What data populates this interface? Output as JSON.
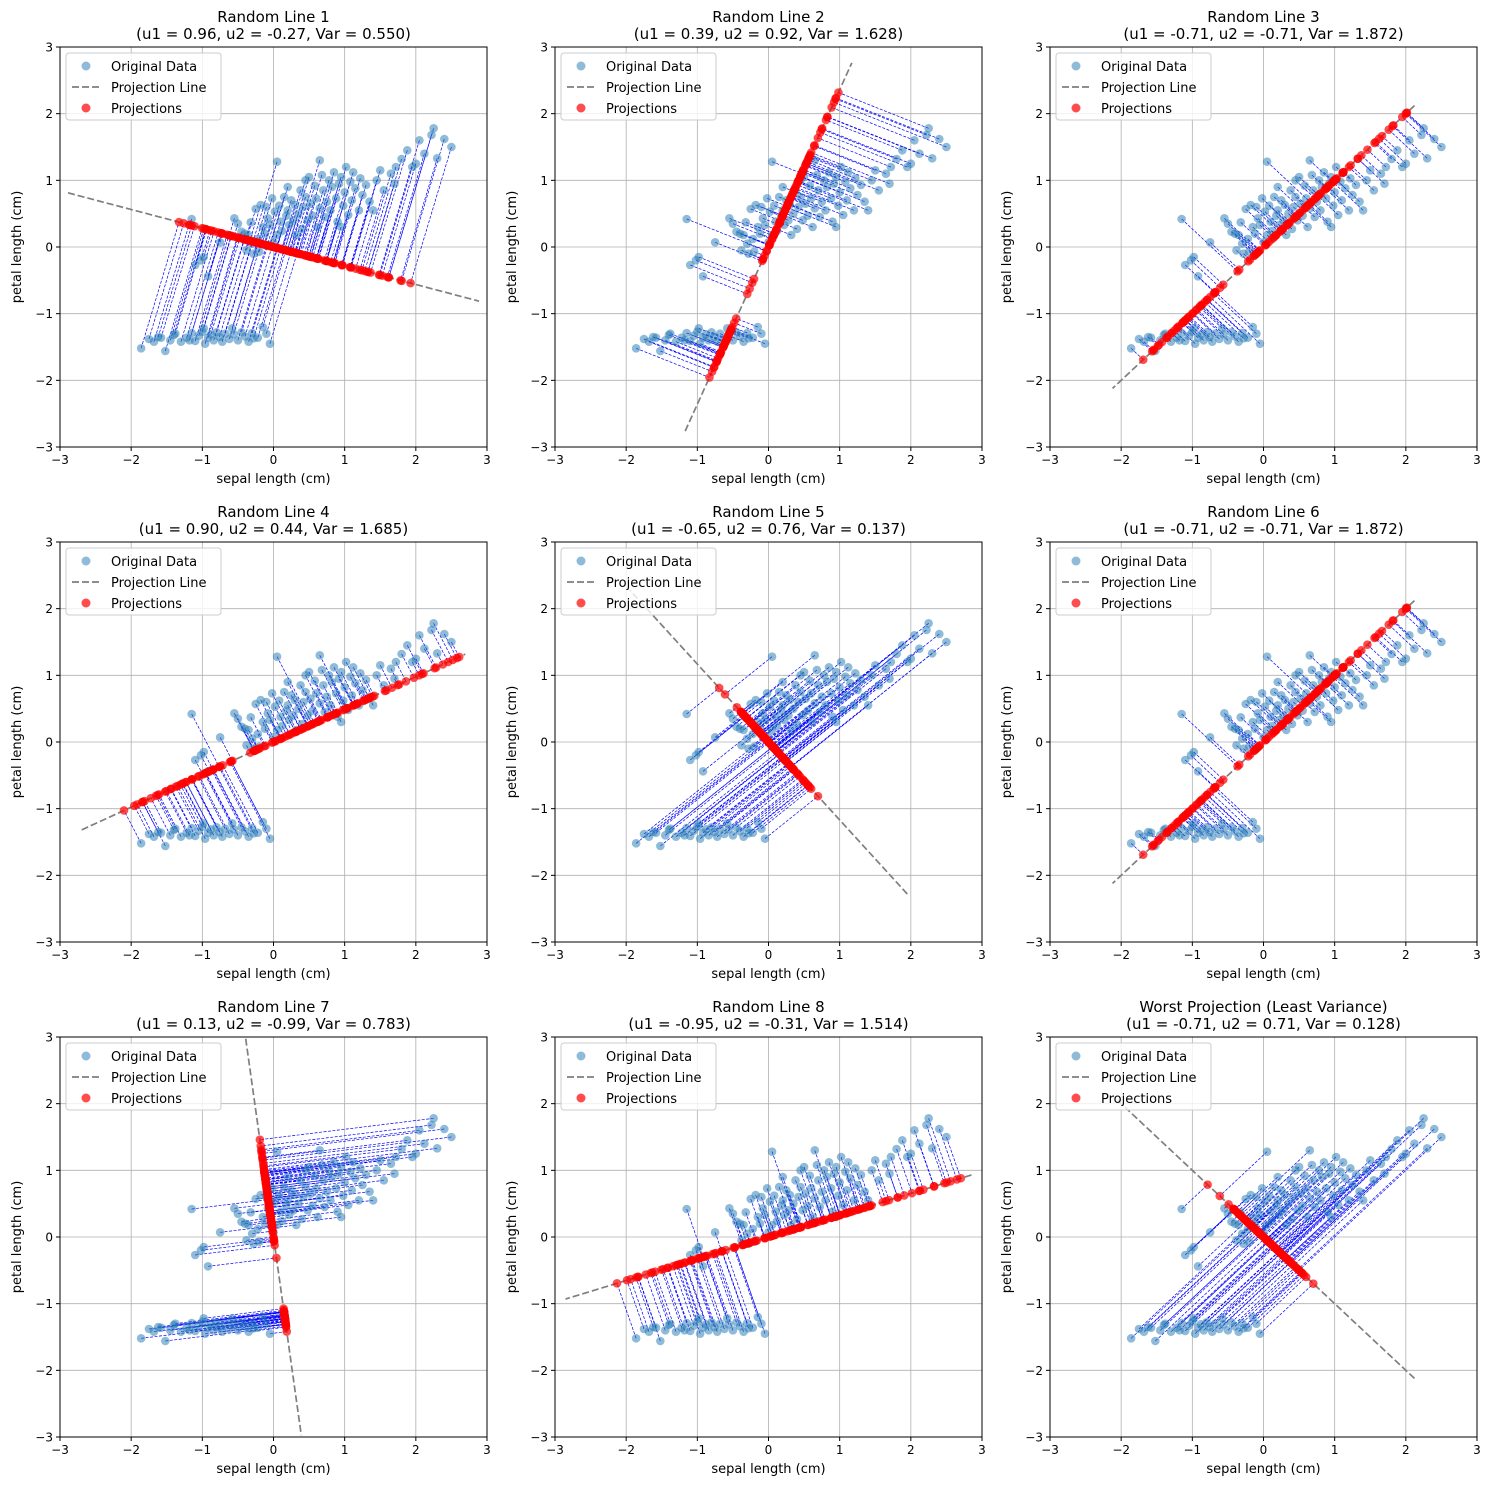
{
  "figure": {
    "common": {
      "xlabel": "sepal length (cm)",
      "ylabel": "petal length (cm)",
      "xlim": [
        -3,
        3
      ],
      "ylim": [
        -3,
        3
      ],
      "ticks": [
        -3,
        -2,
        -1,
        0,
        1,
        2,
        3
      ],
      "tick_labels": [
        "−3",
        "−2",
        "−1",
        "0",
        "1",
        "2",
        "3"
      ],
      "legend": [
        "Original Data",
        "Projection Line",
        "Projections"
      ],
      "legend_position": "upper-left",
      "grid": true
    },
    "colors": {
      "data": "#1f77b4",
      "projection_line": "#7f7f7f",
      "projection_point": "#ff0000",
      "connector": "#0000ff",
      "grid": "#b0b0b0"
    }
  },
  "chart_data": [
    {
      "type": "scatter",
      "title": "Random Line 1",
      "subtitle": "(u1 = 0.96, u2 = -0.27, Var = 0.550)",
      "u": [
        0.96,
        -0.27
      ],
      "variance": 0.55,
      "line_extent": 3.0
    },
    {
      "type": "scatter",
      "title": "Random Line 2",
      "subtitle": "(u1 = 0.39, u2 = 0.92, Var = 1.628)",
      "u": [
        0.39,
        0.92
      ],
      "variance": 1.628,
      "line_extent": 3.0
    },
    {
      "type": "scatter",
      "title": "Random Line 3",
      "subtitle": "(u1 = -0.71, u2 = -0.71, Var = 1.872)",
      "u": [
        -0.71,
        -0.71
      ],
      "variance": 1.872,
      "line_extent": 3.0
    },
    {
      "type": "scatter",
      "title": "Random Line 4",
      "subtitle": "(u1 = 0.90, u2 = 0.44, Var = 1.685)",
      "u": [
        0.9,
        0.44
      ],
      "variance": 1.685,
      "line_extent": 3.0
    },
    {
      "type": "scatter",
      "title": "Random Line 5",
      "subtitle": "(u1 = -0.65, u2 = 0.76, Var = 0.137)",
      "u": [
        -0.65,
        0.76
      ],
      "variance": 0.137,
      "line_extent": 3.0
    },
    {
      "type": "scatter",
      "title": "Random Line 6",
      "subtitle": "(u1 = -0.71, u2 = -0.71, Var = 1.872)",
      "u": [
        -0.71,
        -0.71
      ],
      "variance": 1.872,
      "line_extent": 3.0
    },
    {
      "type": "scatter",
      "title": "Random Line 7",
      "subtitle": "(u1 = 0.13, u2 = -0.99, Var = 0.783)",
      "u": [
        0.13,
        -0.99
      ],
      "variance": 0.783,
      "line_extent": 3.0
    },
    {
      "type": "scatter",
      "title": "Random Line 8",
      "subtitle": "(u1 = -0.95, u2 = -0.31, Var = 1.514)",
      "u": [
        -0.95,
        -0.31
      ],
      "variance": 1.514,
      "line_extent": 3.0
    },
    {
      "type": "scatter",
      "title": "Worst Projection (Least Variance)",
      "subtitle": "(u1 = -0.71, u2 = 0.71, Var = 0.128)",
      "u": [
        -0.71,
        0.71
      ],
      "variance": 0.128,
      "line_extent": 3.0
    }
  ],
  "points": [
    [
      -1.86,
      -1.52
    ],
    [
      -1.75,
      -1.38
    ],
    [
      -1.68,
      -1.42
    ],
    [
      -1.58,
      -1.36
    ],
    [
      -1.52,
      -1.56
    ],
    [
      -1.45,
      -1.4
    ],
    [
      -1.38,
      -1.3
    ],
    [
      -1.3,
      -1.42
    ],
    [
      -1.22,
      -1.36
    ],
    [
      -1.15,
      -1.29
    ],
    [
      -1.1,
      -1.41
    ],
    [
      -1.05,
      -1.33
    ],
    [
      -1.0,
      -1.27
    ],
    [
      -0.96,
      -1.45
    ],
    [
      -0.92,
      -1.36
    ],
    [
      -0.88,
      -1.31
    ],
    [
      -0.84,
      -1.4
    ],
    [
      -0.8,
      -1.28
    ],
    [
      -0.76,
      -1.35
    ],
    [
      -0.72,
      -1.42
    ],
    [
      -0.68,
      -1.3
    ],
    [
      -0.62,
      -1.38
    ],
    [
      -0.56,
      -1.31
    ],
    [
      -0.5,
      -1.4
    ],
    [
      -0.45,
      -1.28
    ],
    [
      -0.4,
      -1.34
    ],
    [
      -0.35,
      -1.42
    ],
    [
      -0.3,
      -1.29
    ],
    [
      -0.22,
      -1.36
    ],
    [
      -0.15,
      -1.2
    ],
    [
      -0.1,
      -1.3
    ],
    [
      -0.05,
      -1.45
    ],
    [
      -1.62,
      -1.35
    ],
    [
      -1.4,
      -1.32
    ],
    [
      -1.18,
      -1.4
    ],
    [
      -0.98,
      -1.22
    ],
    [
      -0.58,
      -1.22
    ],
    [
      -0.28,
      -1.37
    ],
    [
      -1.15,
      0.42
    ],
    [
      -1.1,
      -0.27
    ],
    [
      -1.02,
      -0.2
    ],
    [
      -0.98,
      -0.15
    ],
    [
      -0.92,
      -0.44
    ],
    [
      -0.75,
      0.07
    ],
    [
      -0.55,
      0.43
    ],
    [
      -0.5,
      0.35
    ],
    [
      -0.45,
      0.23
    ],
    [
      -0.4,
      0.2
    ],
    [
      -0.38,
      -0.05
    ],
    [
      -0.35,
      0.18
    ],
    [
      -0.32,
      0.37
    ],
    [
      -0.3,
      0.05
    ],
    [
      -0.28,
      -0.1
    ],
    [
      -0.25,
      0.57
    ],
    [
      -0.22,
      0.12
    ],
    [
      -0.2,
      -0.07
    ],
    [
      -0.18,
      0.63
    ],
    [
      -0.15,
      0.3
    ],
    [
      -0.12,
      0.2
    ],
    [
      -0.1,
      0.6
    ],
    [
      -0.08,
      0.43
    ],
    [
      -0.05,
      0.33
    ],
    [
      -0.02,
      0.73
    ],
    [
      0.0,
      0.07
    ],
    [
      0.02,
      0.53
    ],
    [
      0.05,
      0.18
    ],
    [
      0.08,
      0.62
    ],
    [
      0.1,
      0.38
    ],
    [
      0.12,
      0.24
    ],
    [
      0.15,
      0.75
    ],
    [
      0.18,
      0.47
    ],
    [
      0.2,
      0.55
    ],
    [
      0.22,
      0.33
    ],
    [
      0.25,
      0.7
    ],
    [
      0.28,
      0.4
    ],
    [
      0.3,
      0.63
    ],
    [
      0.32,
      0.18
    ],
    [
      0.35,
      0.5
    ],
    [
      0.38,
      0.85
    ],
    [
      0.4,
      0.27
    ],
    [
      0.42,
      0.6
    ],
    [
      0.45,
      0.75
    ],
    [
      0.48,
      0.4
    ],
    [
      0.5,
      1.05
    ],
    [
      0.52,
      0.65
    ],
    [
      0.55,
      0.47
    ],
    [
      0.58,
      0.92
    ],
    [
      0.6,
      0.73
    ],
    [
      0.62,
      0.3
    ],
    [
      0.65,
      0.58
    ],
    [
      0.68,
      1.08
    ],
    [
      0.7,
      0.85
    ],
    [
      0.72,
      0.45
    ],
    [
      0.75,
      0.68
    ],
    [
      0.78,
      1.0
    ],
    [
      0.8,
      0.55
    ],
    [
      0.82,
      0.9
    ],
    [
      0.85,
      1.12
    ],
    [
      0.88,
      0.73
    ],
    [
      0.9,
      0.38
    ],
    [
      0.92,
      0.95
    ],
    [
      0.95,
      1.05
    ],
    [
      0.98,
      0.62
    ],
    [
      1.0,
      0.82
    ],
    [
      1.02,
      1.2
    ],
    [
      1.05,
      0.48
    ],
    [
      1.08,
      0.98
    ],
    [
      1.1,
      0.7
    ],
    [
      1.12,
      1.12
    ],
    [
      1.15,
      0.88
    ],
    [
      1.2,
      0.55
    ],
    [
      1.22,
      1.03
    ],
    [
      1.25,
      0.78
    ],
    [
      1.3,
      0.93
    ],
    [
      1.35,
      0.68
    ],
    [
      1.4,
      0.55
    ],
    [
      1.45,
      1.0
    ],
    [
      1.55,
      0.85
    ],
    [
      1.65,
      1.1
    ],
    [
      1.72,
      1.2
    ],
    [
      1.8,
      1.32
    ],
    [
      1.88,
      1.45
    ],
    [
      1.95,
      1.2
    ],
    [
      2.05,
      1.6
    ],
    [
      2.12,
      1.4
    ],
    [
      2.22,
      1.68
    ],
    [
      2.25,
      1.78
    ],
    [
      2.3,
      1.33
    ],
    [
      2.4,
      1.62
    ],
    [
      2.5,
      1.5
    ],
    [
      0.05,
      1.28
    ],
    [
      0.65,
      1.3
    ],
    [
      1.5,
      1.15
    ],
    [
      0.2,
      0.9
    ],
    [
      0.45,
      1.0
    ],
    [
      1.7,
      0.95
    ],
    [
      2.0,
      1.25
    ],
    [
      0.95,
      0.3
    ]
  ]
}
